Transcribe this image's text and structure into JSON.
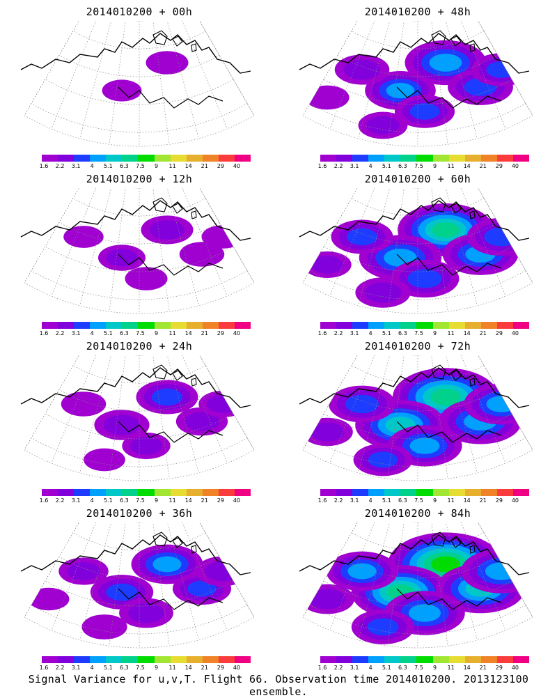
{
  "panels": [
    {
      "title": "2014010200 + 00h",
      "intensity": 0.15
    },
    {
      "title": "2014010200 + 48h",
      "intensity": 0.55
    },
    {
      "title": "2014010200 + 12h",
      "intensity": 0.25
    },
    {
      "title": "2014010200 + 60h",
      "intensity": 0.7
    },
    {
      "title": "2014010200 + 24h",
      "intensity": 0.35
    },
    {
      "title": "2014010200 + 72h",
      "intensity": 0.8
    },
    {
      "title": "2014010200 + 36h",
      "intensity": 0.45
    },
    {
      "title": "2014010200 + 84h",
      "intensity": 0.9
    }
  ],
  "colorbar": {
    "labels": [
      "1.6",
      "2.2",
      "3.1",
      "4",
      "5.1",
      "6.3",
      "7.5",
      "9",
      "11",
      "14",
      "21",
      "29",
      "40"
    ],
    "colors": [
      "#a000d0",
      "#8200dc",
      "#1e3cff",
      "#00a0ff",
      "#00c8c8",
      "#00d28c",
      "#00dc00",
      "#a0e632",
      "#e6dc32",
      "#e6af2d",
      "#f08228",
      "#fa3c3c",
      "#f00082"
    ]
  },
  "footer": "Signal Variance for u,v,T. Flight 66. Observation time 2014010200. 2013123100 ensemble."
}
